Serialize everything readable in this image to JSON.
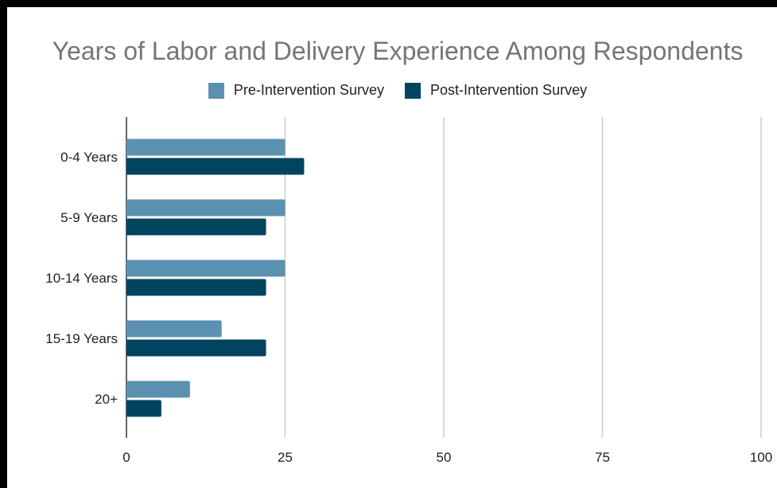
{
  "chart_data": {
    "type": "bar",
    "orientation": "horizontal",
    "title": "Years of Labor and Delivery Experience Among Respondents",
    "categories": [
      "0-4 Years",
      "5-9 Years",
      "10-14 Years",
      "15-19 Years",
      "20+"
    ],
    "series": [
      {
        "name": "Pre-Intervention Survey",
        "color": "#5b91b0",
        "values": [
          25,
          25,
          25,
          15,
          10
        ]
      },
      {
        "name": "Post-Intervention Survey",
        "color": "#00445f",
        "values": [
          28,
          22,
          22,
          22,
          5.5
        ]
      }
    ],
    "xlim": [
      0,
      100
    ],
    "xticks": [
      "0",
      "25",
      "50",
      "75",
      "100"
    ],
    "grid": true,
    "legend_position": "top-center"
  }
}
